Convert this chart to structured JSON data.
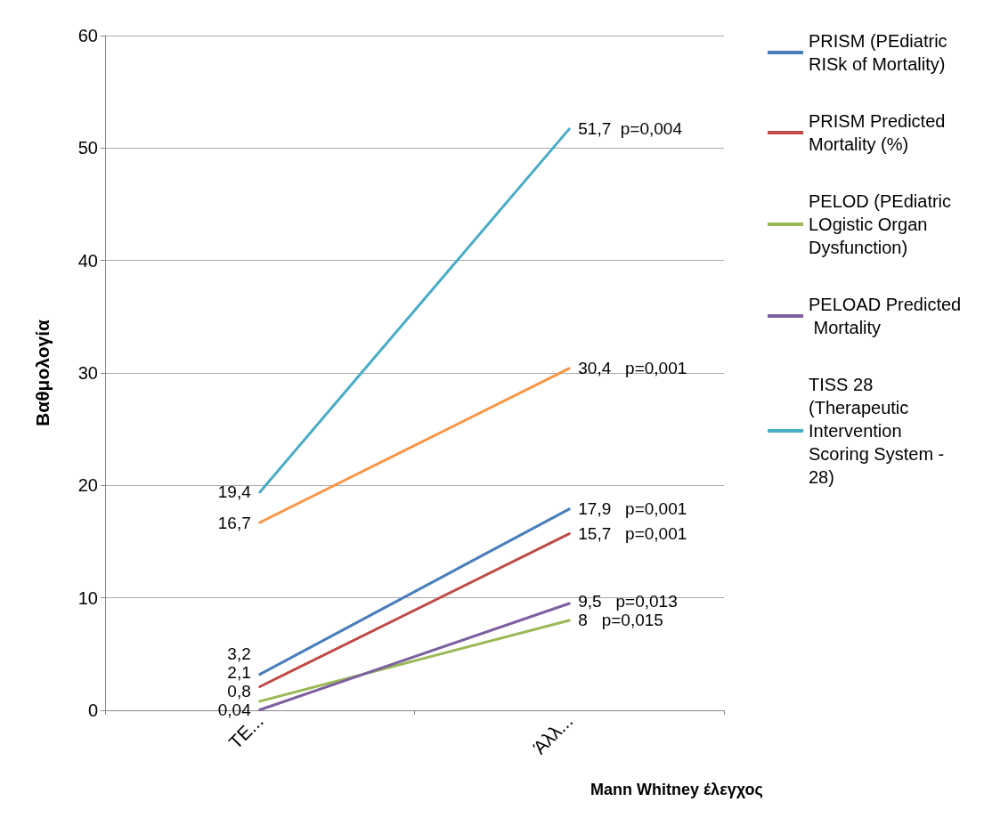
{
  "chart_data": {
    "type": "line",
    "xlabel": "Mann Whitney έλεγχος",
    "ylabel": "Βαθμολογία",
    "categories": [
      "ΤΕ...",
      "Άλλ..."
    ],
    "ylim": [
      0,
      60
    ],
    "yticks": [
      0,
      10,
      20,
      30,
      40,
      50,
      60
    ],
    "grid": "y",
    "legend": "right",
    "marker": "none",
    "line_style": "solid",
    "series": [
      {
        "name": "PRISM (PEdiatric RISk of Mortality)",
        "color": "#4a7ebb",
        "values": [
          3.2,
          17.9
        ],
        "value_labels": [
          "3,2",
          "17,9   p=0,001"
        ]
      },
      {
        "name": "PRISM Predicted Mortality (%)",
        "color": "#be4b48",
        "values": [
          2.1,
          15.7
        ],
        "value_labels": [
          "2,1",
          "15,7   p=0,001"
        ]
      },
      {
        "name": "PELOD (PEdiatric LOgistic Organ Dysfunction)",
        "color": "#98b954",
        "values": [
          0.8,
          8
        ],
        "value_labels": [
          "0,8",
          "8   p=0,015"
        ]
      },
      {
        "name": "PELOAD Predicted Mortality",
        "color": "#7d60a0",
        "values": [
          0.04,
          9.5
        ],
        "value_labels": [
          "0,04",
          "9,5   p=0,013"
        ]
      },
      {
        "name": "TISS 28 (Therapeutic Intervention Scoring System - 28)",
        "color": "#4bacc6",
        "values": [
          19.4,
          51.7
        ],
        "value_labels": [
          "19,4",
          "51,7  p=0,004"
        ]
      },
      {
        "color": "#f79646",
        "values": [
          16.7,
          30.4
        ],
        "value_labels": [
          "16,7",
          "30,4   p=0,001"
        ]
      }
    ]
  }
}
